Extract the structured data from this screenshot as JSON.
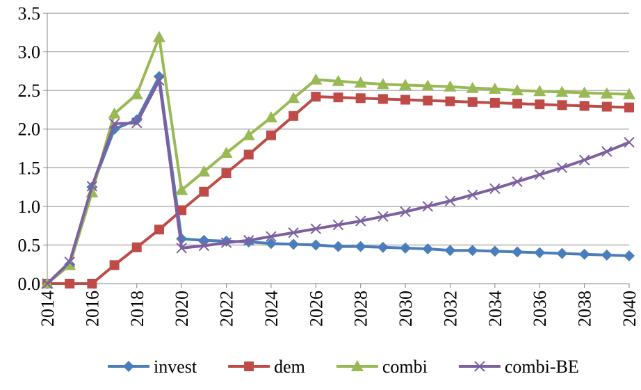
{
  "chart_data": {
    "type": "line",
    "x": [
      2014,
      2015,
      2016,
      2017,
      2018,
      2019,
      2020,
      2021,
      2022,
      2023,
      2024,
      2025,
      2026,
      2027,
      2028,
      2029,
      2030,
      2031,
      2032,
      2033,
      2034,
      2035,
      2036,
      2037,
      2038,
      2039,
      2040
    ],
    "xlim": [
      2014,
      2040
    ],
    "xticks": [
      2014,
      2016,
      2018,
      2020,
      2022,
      2024,
      2026,
      2028,
      2030,
      2032,
      2034,
      2036,
      2038,
      2040
    ],
    "ylim": [
      0,
      3.5
    ],
    "yticks": [
      {
        "value": 0,
        "label": "0.0"
      },
      {
        "value": 0.5,
        "label": "0.5"
      },
      {
        "value": 1,
        "label": "1.0"
      },
      {
        "value": 1.5,
        "label": "1.5"
      },
      {
        "value": 2,
        "label": "2.0"
      },
      {
        "value": 2.5,
        "label": "2.5"
      },
      {
        "value": 3,
        "label": "3.0"
      },
      {
        "value": 3.5,
        "label": "3.5"
      }
    ],
    "grid": true,
    "legend": "bottom",
    "series": [
      {
        "name": "invest",
        "color": "#4a7ebb",
        "marker": "diamond",
        "values": [
          0,
          0.25,
          1.25,
          2.0,
          2.12,
          2.68,
          0.58,
          0.56,
          0.55,
          0.54,
          0.52,
          0.51,
          0.5,
          0.48,
          0.48,
          0.47,
          0.46,
          0.45,
          0.43,
          0.43,
          0.42,
          0.41,
          0.4,
          0.39,
          0.38,
          0.37,
          0.36
        ]
      },
      {
        "name": "dem",
        "color": "#be4b48",
        "marker": "square",
        "values": [
          0,
          0,
          0,
          0.24,
          0.47,
          0.7,
          0.95,
          1.19,
          1.43,
          1.67,
          1.92,
          2.17,
          2.42,
          2.41,
          2.4,
          2.39,
          2.38,
          2.37,
          2.36,
          2.35,
          2.34,
          2.33,
          2.32,
          2.31,
          2.3,
          2.29,
          2.28
        ]
      },
      {
        "name": "combi",
        "color": "#98b954",
        "marker": "triangle",
        "values": [
          0,
          0.24,
          1.18,
          2.2,
          2.45,
          3.19,
          1.21,
          1.45,
          1.69,
          1.92,
          2.15,
          2.4,
          2.64,
          2.62,
          2.6,
          2.58,
          2.57,
          2.56,
          2.55,
          2.53,
          2.52,
          2.5,
          2.49,
          2.48,
          2.47,
          2.46,
          2.45
        ]
      },
      {
        "name": "combi-BE",
        "color": "#7d60a0",
        "marker": "x",
        "values": [
          0,
          0.28,
          1.26,
          2.07,
          2.08,
          2.63,
          0.46,
          0.49,
          0.53,
          0.56,
          0.61,
          0.66,
          0.71,
          0.76,
          0.81,
          0.87,
          0.93,
          1.0,
          1.07,
          1.15,
          1.23,
          1.32,
          1.41,
          1.5,
          1.6,
          1.71,
          1.83
        ]
      }
    ]
  }
}
